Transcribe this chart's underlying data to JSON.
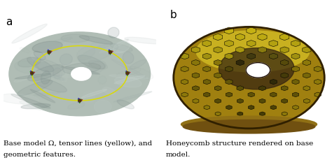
{
  "panel_a_label": "a",
  "panel_b_label": "b",
  "caption_a_line1": "Base model Ω, tensor lines (yellow), and",
  "caption_a_line2": "geometric features.",
  "caption_b_line1": "Honeycomb structure rendered on base",
  "caption_b_line2": "model.",
  "bg_color": "#ffffff",
  "font_size_label": 11,
  "font_size_caption": 7.5,
  "fig_width": 4.74,
  "fig_height": 2.39
}
